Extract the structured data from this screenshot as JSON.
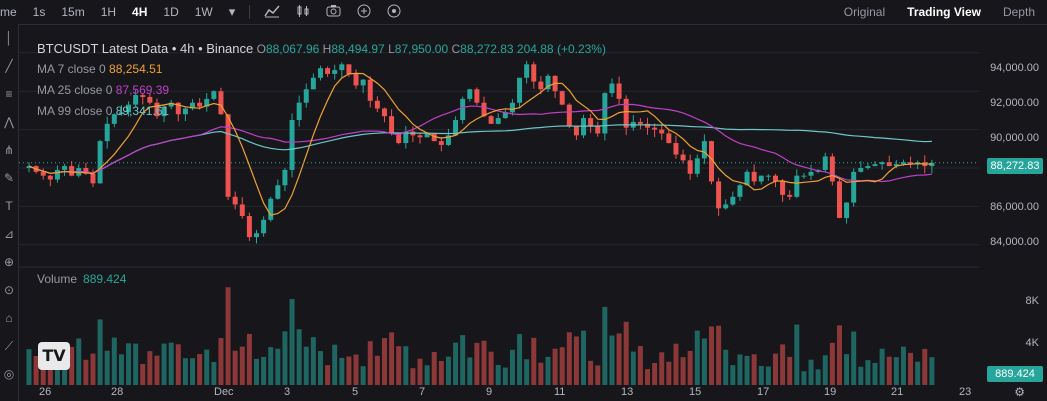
{
  "toolbar": {
    "partial_label": "me",
    "timeframes": [
      "1s",
      "15m",
      "1H",
      "4H",
      "1D",
      "1W"
    ],
    "active_timeframe": "4H",
    "icons": [
      "chevron-down-icon",
      "indicator-icon",
      "candles-icon",
      "camera-icon",
      "plus-icon",
      "replay-icon"
    ],
    "views": [
      "Original",
      "Trading View",
      "Depth"
    ],
    "active_view": "Trading View"
  },
  "legend": {
    "title": "BTCUSDT Latest Data • 4h • Binance",
    "o_key": "O",
    "o": "88,067.96",
    "h_key": "H",
    "h": "88,494.97",
    "l_key": "L",
    "l": "87,950.00",
    "c_key": "C",
    "c": "88,272.83",
    "change": "204.88 (+0.23%)",
    "ma7_label": "MA 7 close 0",
    "ma7": "88,254.51",
    "ma25_label": "MA 25 close 0",
    "ma25": "87,569.39",
    "ma99_label": "MA 99 close 0",
    "ma99": "89,341.61"
  },
  "volume": {
    "label": "Volume",
    "value": "889.424"
  },
  "price_axis": {
    "ticks": [
      "94,000.00",
      "92,000.00",
      "90,000.00",
      "88,000.00",
      "86,000.00",
      "84,000.00"
    ],
    "last_price": "88,272.83",
    "vol_ticks": [
      "8K",
      "4K"
    ],
    "last_volume": "889.424"
  },
  "time_axis": {
    "labels": [
      "26",
      "28",
      "Dec",
      "3",
      "5",
      "7",
      "9",
      "11",
      "13",
      "15",
      "17",
      "19",
      "21",
      "23"
    ]
  },
  "colors": {
    "up": "#26a69a",
    "down": "#ef5350",
    "ma7": "#f0a030",
    "ma25": "#c040c8",
    "ma99": "#6ec6c8",
    "bg": "#17171b"
  },
  "chart_data": {
    "type": "candlestick",
    "symbol": "BTCUSDT",
    "interval": "4h",
    "price_range": [
      83000,
      95500
    ],
    "x_range": [
      24.6,
      23.6
    ],
    "candles_close": [
      88100,
      87800,
      87600,
      87400,
      87900,
      88100,
      87600,
      88000,
      87700,
      87200,
      89400,
      90300,
      90800,
      90900,
      91300,
      91800,
      91700,
      91400,
      90700,
      91200,
      91400,
      90800,
      91100,
      91400,
      91200,
      91600,
      92000,
      90800,
      86500,
      86100,
      85500,
      84400,
      84600,
      85300,
      86400,
      87100,
      87900,
      90500,
      91400,
      92100,
      92700,
      93200,
      92900,
      93100,
      93400,
      92900,
      92300,
      92600,
      91500,
      91100,
      90700,
      89800,
      89300,
      89900,
      89700,
      89600,
      89800,
      89400,
      89200,
      89700,
      90500,
      91600,
      92100,
      91400,
      90700,
      90300,
      90600,
      90900,
      91400,
      92700,
      93400,
      92500,
      92100,
      92800,
      92000,
      91300,
      90200,
      89700,
      90600,
      90200,
      89800,
      91900,
      92400,
      91600,
      90100,
      90400,
      90300,
      90100,
      90000,
      89800,
      89300,
      88700,
      88400,
      87700,
      88500,
      89400,
      87300,
      85900,
      86100,
      86500,
      87100,
      87800,
      87300,
      87600,
      87600,
      87300,
      86600,
      86500,
      87600,
      87600,
      87800,
      87900,
      88600,
      87300,
      85400,
      86200,
      87800,
      88000,
      88100,
      88200,
      88300,
      88100,
      88200,
      88300,
      88200,
      88300,
      88100,
      88272
    ],
    "ma7_last": 88254.51,
    "ma25_last": 87569.39,
    "ma99_last": 89341.61,
    "volume_max_k": 11,
    "volume_last": 889.424
  }
}
